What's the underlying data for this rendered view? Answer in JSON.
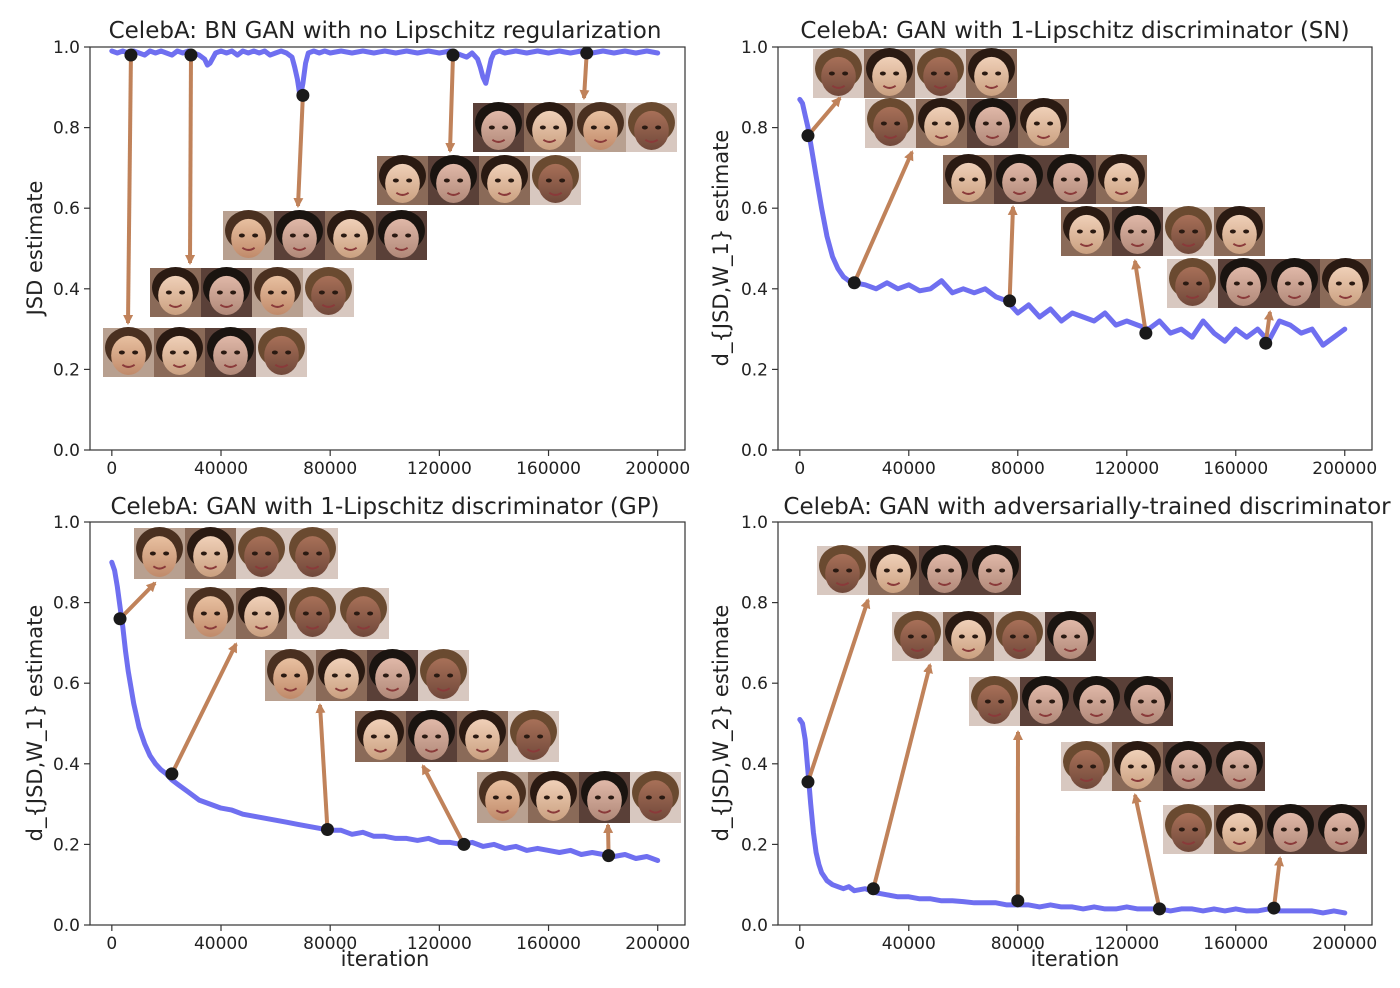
{
  "figure_colors": {
    "curve": "#6f6ff0",
    "arrow": "#c0825a",
    "marker": "#1a1a1a",
    "axes": "#333333"
  },
  "chart_data": [
    {
      "type": "line",
      "title": "CelebA: BN GAN with no Lipschitz regularization",
      "ylabel": "JSD estimate",
      "xlabel": "",
      "xlim": [
        -8000,
        210000
      ],
      "ylim": [
        0,
        1
      ],
      "xticks": [
        0,
        40000,
        80000,
        120000,
        160000,
        200000
      ],
      "yticks": [
        0.0,
        0.2,
        0.4,
        0.6,
        0.8,
        1.0
      ],
      "grid": false,
      "series": [
        {
          "x": [
            0,
            2000,
            4000,
            6000,
            8000,
            10000,
            12000,
            14000,
            16000,
            18000,
            20000,
            22000,
            24000,
            26000,
            28000,
            30000,
            32000,
            34000,
            35000,
            36000,
            38000,
            40000,
            42000,
            44000,
            46000,
            48000,
            50000,
            52000,
            54000,
            56000,
            58000,
            60000,
            62000,
            64000,
            66000,
            67000,
            68000,
            69000,
            70000,
            71000,
            72000,
            74000,
            76000,
            78000,
            80000,
            84000,
            88000,
            92000,
            96000,
            100000,
            104000,
            108000,
            112000,
            116000,
            120000,
            124000,
            126000,
            128000,
            130000,
            132000,
            134000,
            135000,
            136000,
            137000,
            138000,
            139000,
            140000,
            142000,
            144000,
            148000,
            152000,
            156000,
            160000,
            164000,
            168000,
            172000,
            176000,
            180000,
            184000,
            188000,
            192000,
            196000,
            200000
          ],
          "y": [
            0.99,
            0.985,
            0.99,
            0.985,
            0.99,
            0.985,
            0.98,
            0.99,
            0.985,
            0.99,
            0.985,
            0.98,
            0.99,
            0.985,
            0.99,
            0.985,
            0.98,
            0.97,
            0.955,
            0.96,
            0.985,
            0.99,
            0.985,
            0.99,
            0.98,
            0.99,
            0.985,
            0.99,
            0.985,
            0.99,
            0.98,
            0.985,
            0.99,
            0.985,
            0.975,
            0.95,
            0.92,
            0.875,
            0.91,
            0.96,
            0.985,
            0.99,
            0.985,
            0.99,
            0.985,
            0.99,
            0.985,
            0.99,
            0.985,
            0.99,
            0.985,
            0.99,
            0.985,
            0.99,
            0.985,
            0.99,
            0.985,
            0.98,
            0.975,
            0.985,
            0.97,
            0.95,
            0.925,
            0.91,
            0.94,
            0.97,
            0.985,
            0.99,
            0.985,
            0.99,
            0.985,
            0.99,
            0.985,
            0.99,
            0.985,
            0.99,
            0.985,
            0.99,
            0.985,
            0.99,
            0.985,
            0.99,
            0.985
          ]
        }
      ],
      "markers": [
        {
          "x": 7000,
          "y": 0.98
        },
        {
          "x": 29000,
          "y": 0.98
        },
        {
          "x": 70000,
          "y": 0.88
        },
        {
          "x": 125000,
          "y": 0.98
        },
        {
          "x": 174000,
          "y": 0.985
        }
      ]
    },
    {
      "type": "line",
      "title": "CelebA: GAN with 1-Lipschitz discriminator (SN)",
      "ylabel": "d_{JSD,W_1} estimate",
      "xlabel": "",
      "xlim": [
        -8000,
        210000
      ],
      "ylim": [
        0,
        1
      ],
      "xticks": [
        0,
        40000,
        80000,
        120000,
        160000,
        200000
      ],
      "yticks": [
        0.0,
        0.2,
        0.4,
        0.6,
        0.8,
        1.0
      ],
      "grid": false,
      "series": [
        {
          "x": [
            0,
            1000,
            2000,
            3000,
            4000,
            5000,
            6000,
            8000,
            10000,
            12000,
            14000,
            16000,
            18000,
            20000,
            24000,
            28000,
            32000,
            36000,
            40000,
            44000,
            48000,
            52000,
            56000,
            60000,
            64000,
            68000,
            72000,
            76000,
            80000,
            84000,
            88000,
            92000,
            96000,
            100000,
            104000,
            108000,
            112000,
            116000,
            120000,
            124000,
            128000,
            132000,
            136000,
            140000,
            144000,
            148000,
            152000,
            156000,
            160000,
            164000,
            168000,
            172000,
            176000,
            180000,
            184000,
            188000,
            192000,
            196000,
            200000
          ],
          "y": [
            0.87,
            0.86,
            0.83,
            0.8,
            0.76,
            0.72,
            0.68,
            0.6,
            0.53,
            0.48,
            0.45,
            0.43,
            0.42,
            0.415,
            0.41,
            0.4,
            0.415,
            0.4,
            0.41,
            0.395,
            0.4,
            0.42,
            0.39,
            0.4,
            0.39,
            0.4,
            0.38,
            0.37,
            0.34,
            0.36,
            0.33,
            0.35,
            0.32,
            0.34,
            0.33,
            0.32,
            0.34,
            0.31,
            0.32,
            0.31,
            0.3,
            0.32,
            0.29,
            0.3,
            0.28,
            0.32,
            0.29,
            0.27,
            0.3,
            0.28,
            0.3,
            0.27,
            0.32,
            0.31,
            0.29,
            0.3,
            0.26,
            0.28,
            0.3
          ]
        }
      ],
      "markers": [
        {
          "x": 3000,
          "y": 0.78
        },
        {
          "x": 20000,
          "y": 0.415
        },
        {
          "x": 77000,
          "y": 0.37
        },
        {
          "x": 127000,
          "y": 0.29
        },
        {
          "x": 171000,
          "y": 0.265
        }
      ]
    },
    {
      "type": "line",
      "title": "CelebA: GAN with 1-Lipschitz discriminator (GP)",
      "ylabel": "d_{JSD,W_1} estimate",
      "xlabel": "iteration",
      "xlim": [
        -8000,
        210000
      ],
      "ylim": [
        0,
        1
      ],
      "xticks": [
        0,
        40000,
        80000,
        120000,
        160000,
        200000
      ],
      "yticks": [
        0.0,
        0.2,
        0.4,
        0.6,
        0.8,
        1.0
      ],
      "grid": false,
      "series": [
        {
          "x": [
            0,
            1000,
            2000,
            3000,
            4000,
            5000,
            6000,
            8000,
            10000,
            12000,
            14000,
            16000,
            18000,
            20000,
            22000,
            24000,
            28000,
            32000,
            36000,
            40000,
            44000,
            48000,
            52000,
            56000,
            60000,
            64000,
            68000,
            72000,
            76000,
            80000,
            84000,
            88000,
            92000,
            96000,
            100000,
            104000,
            108000,
            112000,
            116000,
            120000,
            124000,
            128000,
            132000,
            136000,
            140000,
            144000,
            148000,
            152000,
            156000,
            160000,
            164000,
            168000,
            172000,
            176000,
            180000,
            184000,
            188000,
            192000,
            196000,
            200000
          ],
          "y": [
            0.9,
            0.88,
            0.84,
            0.79,
            0.74,
            0.68,
            0.63,
            0.55,
            0.49,
            0.45,
            0.42,
            0.4,
            0.385,
            0.375,
            0.36,
            0.35,
            0.33,
            0.31,
            0.3,
            0.29,
            0.285,
            0.275,
            0.27,
            0.265,
            0.26,
            0.255,
            0.25,
            0.245,
            0.24,
            0.235,
            0.235,
            0.225,
            0.23,
            0.22,
            0.22,
            0.215,
            0.215,
            0.21,
            0.215,
            0.205,
            0.205,
            0.2,
            0.205,
            0.195,
            0.2,
            0.19,
            0.195,
            0.185,
            0.19,
            0.185,
            0.18,
            0.185,
            0.175,
            0.18,
            0.175,
            0.17,
            0.175,
            0.165,
            0.17,
            0.16
          ]
        }
      ],
      "markers": [
        {
          "x": 3000,
          "y": 0.76
        },
        {
          "x": 22000,
          "y": 0.375
        },
        {
          "x": 79000,
          "y": 0.237
        },
        {
          "x": 129000,
          "y": 0.2
        },
        {
          "x": 182000,
          "y": 0.172
        }
      ]
    },
    {
      "type": "line",
      "title": "CelebA: GAN with adversarially-trained discriminator",
      "ylabel": "d_{JSD,W_2} estimate",
      "xlabel": "iteration",
      "xlim": [
        -8000,
        210000
      ],
      "ylim": [
        0,
        1
      ],
      "xticks": [
        0,
        40000,
        80000,
        120000,
        160000,
        200000
      ],
      "yticks": [
        0.0,
        0.2,
        0.4,
        0.6,
        0.8,
        1.0
      ],
      "grid": false,
      "series": [
        {
          "x": [
            0,
            1000,
            2000,
            3000,
            4000,
            5000,
            6000,
            7000,
            8000,
            9000,
            10000,
            12000,
            14000,
            16000,
            18000,
            20000,
            24000,
            28000,
            32000,
            36000,
            40000,
            44000,
            48000,
            52000,
            56000,
            60000,
            64000,
            68000,
            72000,
            76000,
            80000,
            84000,
            88000,
            92000,
            96000,
            100000,
            104000,
            108000,
            112000,
            116000,
            120000,
            124000,
            128000,
            132000,
            136000,
            140000,
            144000,
            148000,
            152000,
            156000,
            160000,
            164000,
            168000,
            172000,
            176000,
            180000,
            184000,
            188000,
            192000,
            196000,
            200000
          ],
          "y": [
            0.51,
            0.5,
            0.46,
            0.38,
            0.3,
            0.23,
            0.18,
            0.15,
            0.13,
            0.12,
            0.11,
            0.1,
            0.095,
            0.09,
            0.095,
            0.085,
            0.09,
            0.08,
            0.075,
            0.07,
            0.07,
            0.065,
            0.065,
            0.06,
            0.06,
            0.058,
            0.055,
            0.055,
            0.055,
            0.05,
            0.05,
            0.05,
            0.045,
            0.05,
            0.045,
            0.045,
            0.04,
            0.045,
            0.04,
            0.04,
            0.045,
            0.04,
            0.04,
            0.04,
            0.035,
            0.04,
            0.04,
            0.035,
            0.04,
            0.035,
            0.04,
            0.035,
            0.035,
            0.04,
            0.035,
            0.035,
            0.035,
            0.035,
            0.03,
            0.035,
            0.03
          ]
        }
      ],
      "markers": [
        {
          "x": 3000,
          "y": 0.355
        },
        {
          "x": 27000,
          "y": 0.09
        },
        {
          "x": 80000,
          "y": 0.06
        },
        {
          "x": 132000,
          "y": 0.04
        },
        {
          "x": 174000,
          "y": 0.042
        }
      ]
    }
  ]
}
